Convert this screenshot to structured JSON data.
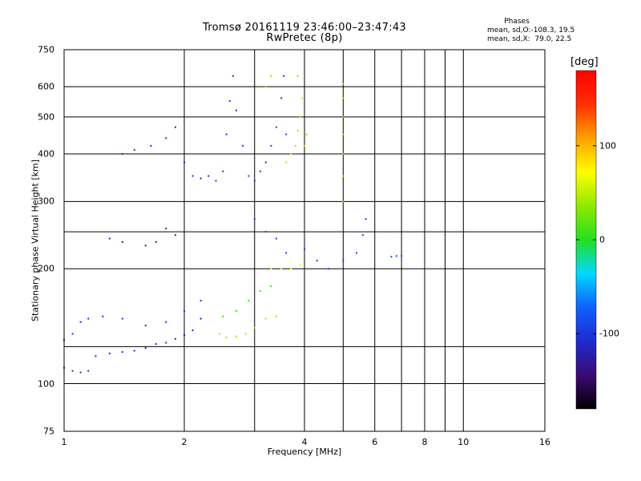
{
  "title_line1": "Tromsø 20161119 23:46:00–23:47:43",
  "title_line2": "RwPretec (8p)",
  "stats": {
    "heading": "Phases",
    "line1": "mean, sd,O:-108.3, 19.5",
    "line2": "mean, sd,X:  79.0, 22.5"
  },
  "colors": {
    "frame": "#000000",
    "grid": "#000000",
    "colorbar_stops": [
      "#000000",
      "#3b0a74",
      "#1f2bd0",
      "#1060ff",
      "#00d8ff",
      "#22e020",
      "#8fe800",
      "#ffff00",
      "#ffa000",
      "#ff3000",
      "#ff0000"
    ]
  },
  "chart_data": {
    "type": "scatter",
    "title": "Tromsø 20161119 23:46:00–23:47:43",
    "subtitle": "RwPretec (8p)",
    "xlabel": "Frequency [MHz]",
    "ylabel": "Stationary phase Virtual Height [km]",
    "x_scale": "log",
    "y_scale": "log",
    "xlim": [
      1,
      16
    ],
    "ylim": [
      75,
      750
    ],
    "x_ticks": [
      "1",
      "2",
      "4",
      "6",
      "8",
      "10",
      "16"
    ],
    "x_tick_values": [
      1,
      2,
      4,
      6,
      8,
      10,
      16
    ],
    "x_minor_gridlines": [
      3,
      5,
      7,
      9
    ],
    "y_ticks": [
      "75",
      "100",
      "200",
      "300",
      "400",
      "500",
      "600",
      "750"
    ],
    "y_tick_values": [
      75,
      100,
      200,
      300,
      400,
      500,
      600,
      750
    ],
    "y_minor_gridlines": [
      125,
      250
    ],
    "grid": true,
    "colorbar": {
      "label": "[deg]",
      "ticks": [
        "100",
        "0",
        "-100"
      ],
      "tick_values": [
        100,
        0,
        -100
      ],
      "range": [
        -180,
        180
      ]
    },
    "traces": [
      {
        "name": "",
        "phase": -115,
        "points": [
          [
            1.0,
            110
          ],
          [
            1.05,
            108
          ],
          [
            1.1,
            107
          ],
          [
            1.15,
            108
          ],
          [
            1.2,
            118
          ],
          [
            1.3,
            120
          ],
          [
            1.4,
            121
          ],
          [
            1.5,
            122
          ],
          [
            1.6,
            124
          ],
          [
            1.7,
            127
          ],
          [
            1.8,
            128
          ],
          [
            1.9,
            131
          ],
          [
            2.0,
            134
          ],
          [
            2.1,
            138
          ],
          [
            2.2,
            148
          ]
        ]
      },
      {
        "name": "",
        "phase": -105,
        "points": [
          [
            1.0,
            130
          ],
          [
            1.05,
            135
          ],
          [
            1.1,
            145
          ],
          [
            1.15,
            148
          ],
          [
            1.25,
            150
          ],
          [
            1.4,
            148
          ],
          [
            1.6,
            142
          ],
          [
            1.8,
            145
          ],
          [
            2.0,
            155
          ],
          [
            2.2,
            165
          ]
        ]
      },
      {
        "name": "",
        "phase": 40,
        "points": [
          [
            2.45,
            135
          ],
          [
            2.55,
            132
          ],
          [
            2.7,
            133
          ],
          [
            2.85,
            135
          ],
          [
            3.0,
            140
          ],
          [
            3.2,
            148
          ],
          [
            3.4,
            150
          ]
        ]
      },
      {
        "name": "",
        "phase": 10,
        "points": [
          [
            2.5,
            150
          ],
          [
            2.7,
            155
          ],
          [
            2.9,
            165
          ],
          [
            3.1,
            175
          ],
          [
            3.3,
            180
          ]
        ]
      },
      {
        "name": "",
        "phase": -110,
        "points": [
          [
            1.4,
            400
          ],
          [
            1.5,
            410
          ],
          [
            1.65,
            420
          ],
          [
            1.8,
            440
          ],
          [
            1.9,
            470
          ],
          [
            2.0,
            380
          ],
          [
            2.1,
            350
          ],
          [
            2.2,
            345
          ],
          [
            2.3,
            350
          ]
        ]
      },
      {
        "name": "",
        "phase": -100,
        "points": [
          [
            2.4,
            340
          ],
          [
            2.5,
            360
          ],
          [
            2.55,
            450
          ],
          [
            2.6,
            550
          ],
          [
            2.65,
            640
          ],
          [
            2.7,
            520
          ],
          [
            2.8,
            420
          ],
          [
            2.9,
            350
          ],
          [
            3.0,
            340
          ],
          [
            3.1,
            360
          ],
          [
            3.2,
            380
          ],
          [
            3.3,
            420
          ],
          [
            3.4,
            470
          ],
          [
            3.5,
            560
          ],
          [
            3.55,
            640
          ],
          [
            3.6,
            450
          ]
        ]
      },
      {
        "name": "",
        "phase": 95,
        "points": [
          [
            3.7,
            400
          ],
          [
            3.8,
            420
          ],
          [
            3.85,
            460
          ],
          [
            3.9,
            500
          ],
          [
            3.95,
            560
          ],
          [
            4.0,
            420
          ],
          [
            3.6,
            380
          ]
        ]
      },
      {
        "name": "",
        "phase": 105,
        "points": [
          [
            3.2,
            600
          ],
          [
            3.3,
            640
          ],
          [
            3.85,
            640
          ],
          [
            4.05,
            450
          ]
        ]
      },
      {
        "name": "",
        "phase": 110,
        "points": [
          [
            5.0,
            300
          ],
          [
            5.0,
            350
          ],
          [
            5.0,
            400
          ],
          [
            5.0,
            450
          ],
          [
            5.0,
            500
          ],
          [
            5.0,
            560
          ],
          [
            5.0,
            610
          ]
        ]
      },
      {
        "name": "",
        "phase": -95,
        "points": [
          [
            3.0,
            270
          ],
          [
            3.2,
            250
          ],
          [
            3.4,
            240
          ],
          [
            3.6,
            220
          ],
          [
            4.0,
            225
          ],
          [
            4.3,
            210
          ],
          [
            4.6,
            200
          ],
          [
            5.0,
            210
          ],
          [
            5.4,
            220
          ],
          [
            5.6,
            245
          ],
          [
            5.7,
            270
          ]
        ]
      },
      {
        "name": "",
        "phase": 70,
        "points": [
          [
            3.3,
            200
          ],
          [
            3.5,
            200
          ],
          [
            3.7,
            200
          ],
          [
            3.9,
            205
          ]
        ]
      },
      {
        "name": "",
        "phase": -90,
        "points": [
          [
            6.6,
            215
          ],
          [
            6.8,
            216
          ],
          [
            7.0,
            216
          ]
        ]
      },
      {
        "name": "",
        "phase": -120,
        "points": [
          [
            1.3,
            240
          ],
          [
            1.4,
            235
          ],
          [
            1.6,
            230
          ],
          [
            1.7,
            235
          ],
          [
            1.8,
            255
          ],
          [
            1.9,
            245
          ]
        ]
      }
    ]
  }
}
